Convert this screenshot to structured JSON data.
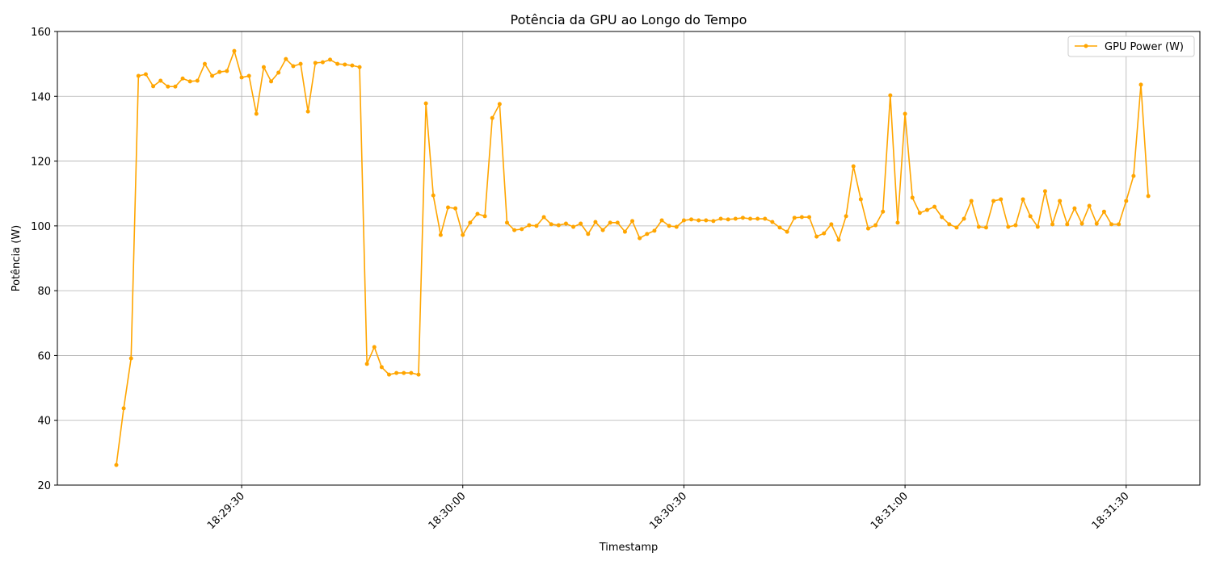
{
  "chart_data": {
    "type": "line",
    "title": "Potência da GPU ao Longo do Tempo",
    "x_label": "Timestamp",
    "y_label": "Potência (W)",
    "x": [
      "18:29:13",
      "18:29:14",
      "18:29:15",
      "18:29:16",
      "18:29:17",
      "18:29:18",
      "18:29:19",
      "18:29:20",
      "18:29:21",
      "18:29:22",
      "18:29:23",
      "18:29:24",
      "18:29:25",
      "18:29:26",
      "18:29:27",
      "18:29:28",
      "18:29:29",
      "18:29:30",
      "18:29:31",
      "18:29:32",
      "18:29:33",
      "18:29:34",
      "18:29:35",
      "18:29:36",
      "18:29:37",
      "18:29:38",
      "18:29:39",
      "18:29:40",
      "18:29:41",
      "18:29:42",
      "18:29:43",
      "18:29:44",
      "18:29:45",
      "18:29:46",
      "18:29:47",
      "18:29:48",
      "18:29:49",
      "18:29:50",
      "18:29:51",
      "18:29:52",
      "18:29:53",
      "18:29:54",
      "18:29:55",
      "18:29:56",
      "18:29:57",
      "18:29:58",
      "18:29:59",
      "18:30:00",
      "18:30:01",
      "18:30:02",
      "18:30:03",
      "18:30:04",
      "18:30:05",
      "18:30:06",
      "18:30:07",
      "18:30:08",
      "18:30:09",
      "18:30:10",
      "18:30:11",
      "18:30:12",
      "18:30:13",
      "18:30:14",
      "18:30:15",
      "18:30:16",
      "18:30:17",
      "18:30:18",
      "18:30:19",
      "18:30:20",
      "18:30:21",
      "18:30:22",
      "18:30:23",
      "18:30:24",
      "18:30:25",
      "18:30:26",
      "18:30:27",
      "18:30:28",
      "18:30:29",
      "18:30:30",
      "18:30:31",
      "18:30:32",
      "18:30:33",
      "18:30:34",
      "18:30:35",
      "18:30:36",
      "18:30:37",
      "18:30:38",
      "18:30:39",
      "18:30:40",
      "18:30:41",
      "18:30:42",
      "18:30:43",
      "18:30:44",
      "18:30:45",
      "18:30:46",
      "18:30:47",
      "18:30:48",
      "18:30:49",
      "18:30:50",
      "18:30:51",
      "18:30:52",
      "18:30:53",
      "18:30:54",
      "18:30:55",
      "18:30:56",
      "18:30:57",
      "18:30:58",
      "18:30:59",
      "18:31:00",
      "18:31:01",
      "18:31:02",
      "18:31:03",
      "18:31:04",
      "18:31:05",
      "18:31:06",
      "18:31:07",
      "18:31:08",
      "18:31:09",
      "18:31:10",
      "18:31:11",
      "18:31:12",
      "18:31:13",
      "18:31:14",
      "18:31:15",
      "18:31:16",
      "18:31:17",
      "18:31:18",
      "18:31:19",
      "18:31:20",
      "18:31:21",
      "18:31:22",
      "18:31:23",
      "18:31:24",
      "18:31:25",
      "18:31:26",
      "18:31:27",
      "18:31:28",
      "18:31:29",
      "18:31:30",
      "18:31:31",
      "18:31:32",
      "18:31:33"
    ],
    "series": [
      {
        "name": "GPU Power (W)",
        "color": "#ffa500",
        "values": [
          26.2,
          43.7,
          59.1,
          146.3,
          146.8,
          143.1,
          144.8,
          143,
          143,
          145.5,
          144.6,
          144.8,
          150,
          146.3,
          147.5,
          147.8,
          154,
          145.8,
          146.3,
          134.6,
          149,
          144.6,
          147.3,
          151.5,
          149.3,
          150,
          135.3,
          150.3,
          150.5,
          151.3,
          150,
          149.8,
          149.5,
          149,
          57.4,
          62.6,
          56.4,
          54.1,
          54.6,
          54.6,
          54.6,
          54.1,
          137.8,
          109.4,
          97.2,
          105.7,
          105.4,
          97.2,
          101,
          103.7,
          103,
          133.3,
          137.6,
          101,
          98.7,
          99,
          100.2,
          100,
          102.7,
          100.5,
          100.2,
          100.7,
          99.7,
          100.7,
          97.5,
          101.2,
          98.7,
          101,
          101,
          98.2,
          101.5,
          96.2,
          97.5,
          98.5,
          101.7,
          100,
          99.7,
          101.7,
          102,
          101.7,
          101.7,
          101.5,
          102.2,
          102,
          102.2,
          102.5,
          102.2,
          102.2,
          102.2,
          101.2,
          99.5,
          98.2,
          102.5,
          102.7,
          102.7,
          96.7,
          97.7,
          100.5,
          95.7,
          103,
          118.4,
          108.2,
          99.2,
          100.2,
          104.4,
          140.3,
          101,
          134.6,
          108.7,
          104,
          104.9,
          105.9,
          102.7,
          100.5,
          99.5,
          102.2,
          107.7,
          99.7,
          99.5,
          107.7,
          108.2,
          99.7,
          100.2,
          108.2,
          103,
          99.7,
          110.7,
          100.5,
          107.7,
          100.5,
          105.4,
          100.7,
          106.2,
          100.7,
          104.4,
          100.5,
          100.5,
          107.7,
          115.4,
          143.6,
          109.2
        ]
      }
    ],
    "xlim": [
      "18:29:05",
      "18:31:40"
    ],
    "xticks": [
      "18:29:30",
      "18:30:00",
      "18:30:30",
      "18:31:00",
      "18:31:30"
    ],
    "ylim": [
      20,
      160
    ],
    "yticks": [
      20,
      40,
      60,
      80,
      100,
      120,
      140,
      160
    ],
    "grid": true,
    "legend": "upper right"
  }
}
